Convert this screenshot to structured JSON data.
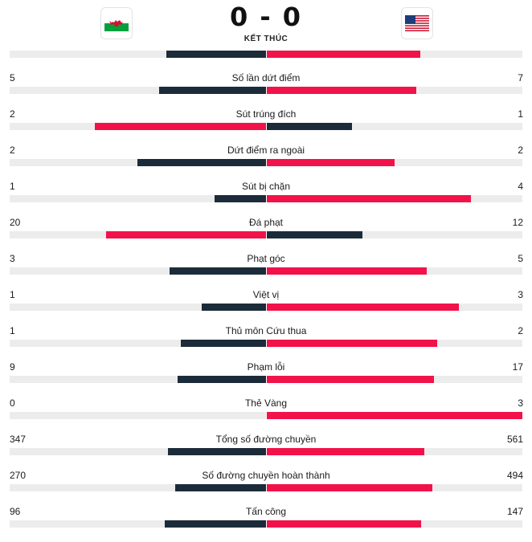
{
  "match": {
    "home_flag_icon": "wales-flag-icon",
    "away_flag_icon": "usa-flag-icon",
    "score": "0 - 0",
    "status": "KẾT THÚC"
  },
  "colors": {
    "dark": "#1b2b3a",
    "red": "#f2124a",
    "track": "#ececec"
  },
  "top_row": {
    "home_fraction": 0.39,
    "away_fraction": 0.6
  },
  "stats": [
    {
      "label": "Số lần dứt điểm",
      "home": "5",
      "away": "7"
    },
    {
      "label": "Sút trúng đích",
      "home": "2",
      "away": "1"
    },
    {
      "label": "Dứt điểm ra ngoài",
      "home": "2",
      "away": "2"
    },
    {
      "label": "Sút bị chặn",
      "home": "1",
      "away": "4"
    },
    {
      "label": "Đá phạt",
      "home": "20",
      "away": "12"
    },
    {
      "label": "Phạt góc",
      "home": "3",
      "away": "5"
    },
    {
      "label": "Việt vị",
      "home": "1",
      "away": "3"
    },
    {
      "label": "Thủ môn Cứu thua",
      "home": "1",
      "away": "2"
    },
    {
      "label": "Phạm lỗi",
      "home": "9",
      "away": "17"
    },
    {
      "label": "Thẻ Vàng",
      "home": "0",
      "away": "3"
    },
    {
      "label": "Tổng số đường chuyền",
      "home": "347",
      "away": "561"
    },
    {
      "label": "Số đường chuyền hoàn thành",
      "home": "270",
      "away": "494"
    },
    {
      "label": "Tấn công",
      "home": "96",
      "away": "147"
    }
  ]
}
